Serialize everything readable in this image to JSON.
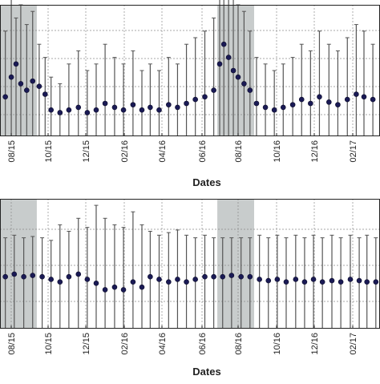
{
  "chart_data": [
    {
      "type": "scatter",
      "title": "",
      "xlabel": "Dates",
      "ylabel": "",
      "x_ticks": [
        "08/15",
        "10/15",
        "12/15",
        "02/16",
        "04/16",
        "06/16",
        "08/16",
        "10/16",
        "12/16",
        "02/17"
      ],
      "x_range": [
        "2015-07-01",
        "2017-04-01"
      ],
      "shaded_periods": [
        [
          "2015-07-01",
          "2015-09-01"
        ],
        [
          "2016-07-01",
          "2016-09-01"
        ]
      ],
      "grid": true,
      "series": [
        {
          "kind": "daily_mean_with_error_bars",
          "points": [
            [
              "2015-07-10",
              0.3,
              0.8
            ],
            [
              "2015-07-20",
              0.45,
              1.2
            ],
            [
              "2015-07-28",
              0.55,
              0.9
            ],
            [
              "2015-08-05",
              0.4,
              1.0
            ],
            [
              "2015-08-15",
              0.35,
              0.85
            ],
            [
              "2015-08-25",
              0.42,
              0.95
            ],
            [
              "2015-09-05",
              0.38,
              0.7
            ],
            [
              "2015-09-15",
              0.32,
              0.6
            ],
            [
              "2015-09-25",
              0.2,
              0.45
            ],
            [
              "2015-10-10",
              0.18,
              0.4
            ],
            [
              "2015-10-25",
              0.2,
              0.55
            ],
            [
              "2015-11-10",
              0.22,
              0.65
            ],
            [
              "2015-11-25",
              0.18,
              0.5
            ],
            [
              "2015-12-10",
              0.2,
              0.55
            ],
            [
              "2015-12-25",
              0.25,
              0.7
            ],
            [
              "2016-01-10",
              0.22,
              0.6
            ],
            [
              "2016-01-25",
              0.2,
              0.55
            ],
            [
              "2016-02-10",
              0.24,
              0.65
            ],
            [
              "2016-02-25",
              0.2,
              0.5
            ],
            [
              "2016-03-10",
              0.22,
              0.55
            ],
            [
              "2016-03-25",
              0.2,
              0.5
            ],
            [
              "2016-04-10",
              0.24,
              0.6
            ],
            [
              "2016-04-25",
              0.22,
              0.55
            ],
            [
              "2016-05-10",
              0.25,
              0.7
            ],
            [
              "2016-05-25",
              0.28,
              0.75
            ],
            [
              "2016-06-10",
              0.3,
              0.8
            ],
            [
              "2016-06-25",
              0.35,
              0.9
            ],
            [
              "2016-07-05",
              0.55,
              1.4
            ],
            [
              "2016-07-12",
              0.7,
              1.6
            ],
            [
              "2016-07-20",
              0.6,
              1.3
            ],
            [
              "2016-07-28",
              0.5,
              1.1
            ],
            [
              "2016-08-05",
              0.45,
              1.0
            ],
            [
              "2016-08-15",
              0.4,
              0.95
            ],
            [
              "2016-08-25",
              0.35,
              0.8
            ],
            [
              "2016-09-05",
              0.25,
              0.6
            ],
            [
              "2016-09-20",
              0.22,
              0.55
            ],
            [
              "2016-10-05",
              0.2,
              0.5
            ],
            [
              "2016-10-20",
              0.22,
              0.55
            ],
            [
              "2016-11-05",
              0.24,
              0.6
            ],
            [
              "2016-11-20",
              0.28,
              0.7
            ],
            [
              "2016-12-05",
              0.25,
              0.65
            ],
            [
              "2016-12-20",
              0.3,
              0.8
            ],
            [
              "2017-01-05",
              0.26,
              0.7
            ],
            [
              "2017-01-20",
              0.24,
              0.65
            ],
            [
              "2017-02-05",
              0.28,
              0.75
            ],
            [
              "2017-02-20",
              0.32,
              0.85
            ],
            [
              "2017-03-05",
              0.3,
              0.8
            ],
            [
              "2017-03-20",
              0.28,
              0.7
            ]
          ]
        }
      ]
    },
    {
      "type": "scatter",
      "title": "",
      "xlabel": "Dates",
      "ylabel": "",
      "x_ticks": [
        "08/15",
        "10/15",
        "12/15",
        "02/16",
        "04/16",
        "06/16",
        "08/16",
        "10/16",
        "12/16",
        "02/17"
      ],
      "x_range": [
        "2015-07-01",
        "2017-04-01"
      ],
      "shaded_periods": [
        [
          "2015-07-01",
          "2015-09-01"
        ],
        [
          "2016-07-01",
          "2016-09-01"
        ]
      ],
      "grid": true,
      "series": [
        {
          "kind": "daily_mean_with_error_bars",
          "points": [
            [
              "2015-07-10",
              0.4,
              0.7
            ],
            [
              "2015-07-25",
              0.42,
              0.72
            ],
            [
              "2015-08-10",
              0.4,
              0.7
            ],
            [
              "2015-08-25",
              0.41,
              0.71
            ],
            [
              "2015-09-10",
              0.4,
              0.7
            ],
            [
              "2015-09-25",
              0.38,
              0.68
            ],
            [
              "2015-10-10",
              0.36,
              0.8
            ],
            [
              "2015-10-25",
              0.4,
              0.75
            ],
            [
              "2015-11-10",
              0.42,
              0.85
            ],
            [
              "2015-11-25",
              0.38,
              0.78
            ],
            [
              "2015-12-10",
              0.35,
              0.95
            ],
            [
              "2015-12-25",
              0.3,
              0.85
            ],
            [
              "2016-01-10",
              0.32,
              0.8
            ],
            [
              "2016-01-25",
              0.3,
              0.78
            ],
            [
              "2016-02-10",
              0.36,
              0.9
            ],
            [
              "2016-02-25",
              0.32,
              0.8
            ],
            [
              "2016-03-10",
              0.4,
              0.75
            ],
            [
              "2016-03-25",
              0.38,
              0.72
            ],
            [
              "2016-04-10",
              0.36,
              0.74
            ],
            [
              "2016-04-25",
              0.38,
              0.76
            ],
            [
              "2016-05-10",
              0.36,
              0.72
            ],
            [
              "2016-05-25",
              0.38,
              0.7
            ],
            [
              "2016-06-10",
              0.4,
              0.72
            ],
            [
              "2016-06-25",
              0.4,
              0.7
            ],
            [
              "2016-07-10",
              0.4,
              0.7
            ],
            [
              "2016-07-25",
              0.41,
              0.7
            ],
            [
              "2016-08-10",
              0.4,
              0.7
            ],
            [
              "2016-08-25",
              0.4,
              0.7
            ],
            [
              "2016-09-10",
              0.38,
              0.72
            ],
            [
              "2016-09-25",
              0.37,
              0.7
            ],
            [
              "2016-10-10",
              0.38,
              0.72
            ],
            [
              "2016-10-25",
              0.36,
              0.7
            ],
            [
              "2016-11-10",
              0.38,
              0.72
            ],
            [
              "2016-11-25",
              0.36,
              0.7
            ],
            [
              "2016-12-10",
              0.38,
              0.72
            ],
            [
              "2016-12-25",
              0.36,
              0.7
            ],
            [
              "2017-01-10",
              0.37,
              0.72
            ],
            [
              "2017-01-25",
              0.36,
              0.7
            ],
            [
              "2017-02-10",
              0.38,
              0.72
            ],
            [
              "2017-02-25",
              0.37,
              0.7
            ],
            [
              "2017-03-10",
              0.36,
              0.72
            ],
            [
              "2017-03-25",
              0.36,
              0.7
            ]
          ]
        }
      ]
    }
  ]
}
